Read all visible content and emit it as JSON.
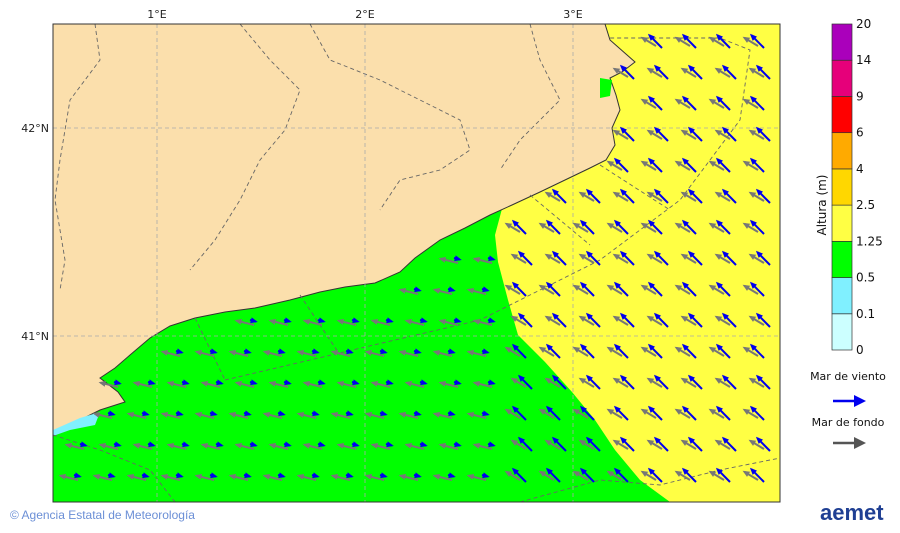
{
  "map": {
    "lon_labels": [
      "1°E",
      "2°E",
      "3°E"
    ],
    "lat_labels": [
      "42°N",
      "41°N"
    ],
    "colors": {
      "land": "#fbdfac",
      "green": "#00ff00",
      "yellow": "#ffff44",
      "wind_arrow": "#0000ee",
      "swell_arrow": "#777777"
    }
  },
  "legend": {
    "title": "Altura (m)",
    "levels": [
      "0",
      "0.1",
      "0.5",
      "1.25",
      "2.5",
      "4",
      "6",
      "9",
      "14",
      "20"
    ],
    "colors": [
      "#ccffff",
      "#80f0ff",
      "#00ff00",
      "#ffff44",
      "#ffd700",
      "#ffaa00",
      "#ff0000",
      "#e6007a",
      "#aa00bb"
    ],
    "wind_sea_label": "Mar de viento",
    "swell_label": "Mar de fondo"
  },
  "footer": {
    "copyright": "© Agencia Estatal de Meteorología",
    "logo_text": "aemet"
  }
}
